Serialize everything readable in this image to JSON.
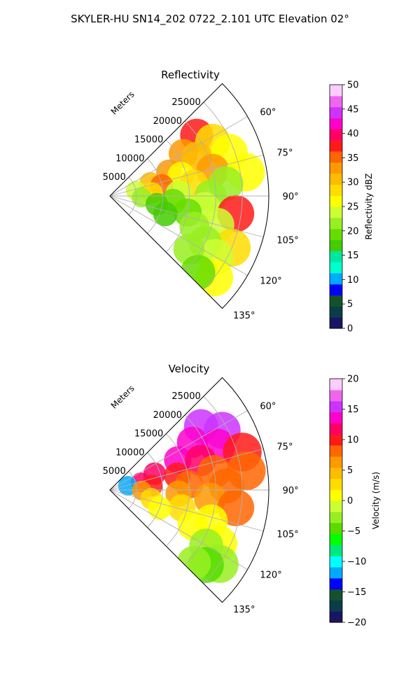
{
  "figure_title": "SKYLER-HU  SN14_202  0722_2.101 UTC Elevation 02°",
  "chart_data": [
    {
      "type": "heatmap",
      "projection": "polar-sector",
      "title": "Reflectivity",
      "range_axis_label": "Meters",
      "range_ticks": [
        5000,
        10000,
        15000,
        20000,
        25000
      ],
      "range_max": 30000,
      "azimuth_range_deg": [
        45,
        135
      ],
      "azimuth_ticks_deg": [
        60,
        75,
        90,
        105,
        120,
        135
      ],
      "azimuth_tick_labels": [
        "60°",
        "75°",
        "90°",
        "105°",
        "120°",
        "135°"
      ],
      "grid": true,
      "colorbar": {
        "label": "Reflectivity dBZ",
        "range": [
          0,
          50
        ],
        "ticks": [
          0,
          5,
          10,
          15,
          20,
          25,
          30,
          35,
          40,
          45,
          50
        ],
        "colors": [
          "#1b1464",
          "#0a3d4a",
          "#15522b",
          "#0000ff",
          "#00aaff",
          "#00ffcc",
          "#00e8a0",
          "#44cc00",
          "#66dd00",
          "#99ee22",
          "#ccff33",
          "#ffff00",
          "#ffdd00",
          "#ffbb00",
          "#ff9900",
          "#ff6600",
          "#ff1a1a",
          "#ff0066",
          "#ff00cc",
          "#cc33ff",
          "#ee66ee",
          "#ffccff"
        ]
      },
      "echo_patches": [
        {
          "az": 55,
          "r": 20000,
          "value": 38
        },
        {
          "az": 60,
          "r": 16000,
          "value": 32
        },
        {
          "az": 62,
          "r": 22000,
          "value": 28
        },
        {
          "az": 66,
          "r": 18000,
          "value": 30
        },
        {
          "az": 68,
          "r": 12000,
          "value": 34
        },
        {
          "az": 70,
          "r": 24000,
          "value": 27
        },
        {
          "az": 72,
          "r": 8000,
          "value": 30
        },
        {
          "az": 74,
          "r": 14000,
          "value": 26
        },
        {
          "az": 76,
          "r": 20000,
          "value": 33
        },
        {
          "az": 78,
          "r": 5000,
          "value": 24
        },
        {
          "az": 79,
          "r": 10000,
          "value": 36
        },
        {
          "az": 80,
          "r": 26000,
          "value": 25
        },
        {
          "az": 82,
          "r": 16000,
          "value": 29
        },
        {
          "az": 84,
          "r": 22000,
          "value": 22
        },
        {
          "az": 86,
          "r": 8000,
          "value": 28
        },
        {
          "az": 88,
          "r": 13000,
          "value": 23
        },
        {
          "az": 90,
          "r": 19000,
          "value": 21
        },
        {
          "az": 93,
          "r": 6000,
          "value": 22
        },
        {
          "az": 95,
          "r": 12000,
          "value": 19
        },
        {
          "az": 97,
          "r": 18000,
          "value": 24
        },
        {
          "az": 98,
          "r": 24000,
          "value": 38
        },
        {
          "az": 100,
          "r": 9000,
          "value": 17
        },
        {
          "az": 102,
          "r": 15000,
          "value": 20
        },
        {
          "az": 105,
          "r": 21000,
          "value": 23
        },
        {
          "az": 108,
          "r": 11000,
          "value": 16
        },
        {
          "az": 110,
          "r": 17000,
          "value": 21
        },
        {
          "az": 113,
          "r": 25000,
          "value": 28
        },
        {
          "az": 116,
          "r": 20000,
          "value": 22
        },
        {
          "az": 120,
          "r": 23000,
          "value": 24
        },
        {
          "az": 124,
          "r": 18000,
          "value": 21
        },
        {
          "az": 128,
          "r": 25000,
          "value": 26
        },
        {
          "az": 131,
          "r": 22000,
          "value": 20
        }
      ]
    },
    {
      "type": "heatmap",
      "projection": "polar-sector",
      "title": "Velocity",
      "range_axis_label": "Meters",
      "range_ticks": [
        5000,
        10000,
        15000,
        20000,
        25000
      ],
      "range_max": 30000,
      "azimuth_range_deg": [
        45,
        135
      ],
      "azimuth_ticks_deg": [
        60,
        75,
        90,
        105,
        120,
        135
      ],
      "azimuth_tick_labels": [
        "60°",
        "75°",
        "90°",
        "105°",
        "120°",
        "135°"
      ],
      "grid": true,
      "colorbar": {
        "label": "Velocity (m/s)",
        "range": [
          -20,
          20
        ],
        "ticks": [
          -20,
          -15,
          -10,
          -5,
          0,
          5,
          10,
          15,
          20
        ],
        "colors": [
          "#1b1464",
          "#0a3d4a",
          "#15522b",
          "#0000ff",
          "#00aaff",
          "#00ffff",
          "#00e87a",
          "#00ff00",
          "#55dd00",
          "#99ee22",
          "#ccff33",
          "#ffff00",
          "#ffdd00",
          "#ffbb00",
          "#ff9900",
          "#ff6600",
          "#ff1a1a",
          "#ff0066",
          "#ff00cc",
          "#cc33ff",
          "#ee66ee",
          "#ffccff"
        ]
      },
      "echo_patches": [
        {
          "az": 55,
          "r": 21000,
          "value": 15
        },
        {
          "az": 60,
          "r": 18000,
          "value": 14
        },
        {
          "az": 62,
          "r": 24000,
          "value": 15
        },
        {
          "az": 66,
          "r": 14000,
          "value": 13
        },
        {
          "az": 68,
          "r": 22000,
          "value": 14
        },
        {
          "az": 70,
          "r": 9000,
          "value": 12
        },
        {
          "az": 72,
          "r": 18000,
          "value": 11
        },
        {
          "az": 74,
          "r": 26000,
          "value": 10
        },
        {
          "az": 76,
          "r": 6000,
          "value": 12
        },
        {
          "az": 77,
          "r": 3500,
          "value": -12
        },
        {
          "az": 78,
          "r": 13000,
          "value": 10
        },
        {
          "az": 80,
          "r": 20000,
          "value": 9
        },
        {
          "az": 82,
          "r": 26000,
          "value": 8
        },
        {
          "az": 84,
          "r": 8000,
          "value": 10
        },
        {
          "az": 86,
          "r": 15000,
          "value": 9
        },
        {
          "az": 88,
          "r": 22000,
          "value": 8
        },
        {
          "az": 91,
          "r": 6000,
          "value": 7
        },
        {
          "az": 93,
          "r": 13000,
          "value": 6
        },
        {
          "az": 95,
          "r": 19000,
          "value": 7
        },
        {
          "az": 98,
          "r": 24000,
          "value": 9
        },
        {
          "az": 102,
          "r": 8000,
          "value": 2
        },
        {
          "az": 104,
          "r": 14000,
          "value": 3
        },
        {
          "az": 107,
          "r": 20000,
          "value": 1
        },
        {
          "az": 110,
          "r": 10000,
          "value": 0
        },
        {
          "az": 113,
          "r": 17000,
          "value": 1
        },
        {
          "az": 116,
          "r": 23000,
          "value": 0
        },
        {
          "az": 120,
          "r": 21000,
          "value": -2
        },
        {
          "az": 124,
          "r": 25000,
          "value": -3
        },
        {
          "az": 128,
          "r": 23000,
          "value": -4
        },
        {
          "az": 131,
          "r": 21000,
          "value": -3
        }
      ]
    }
  ]
}
